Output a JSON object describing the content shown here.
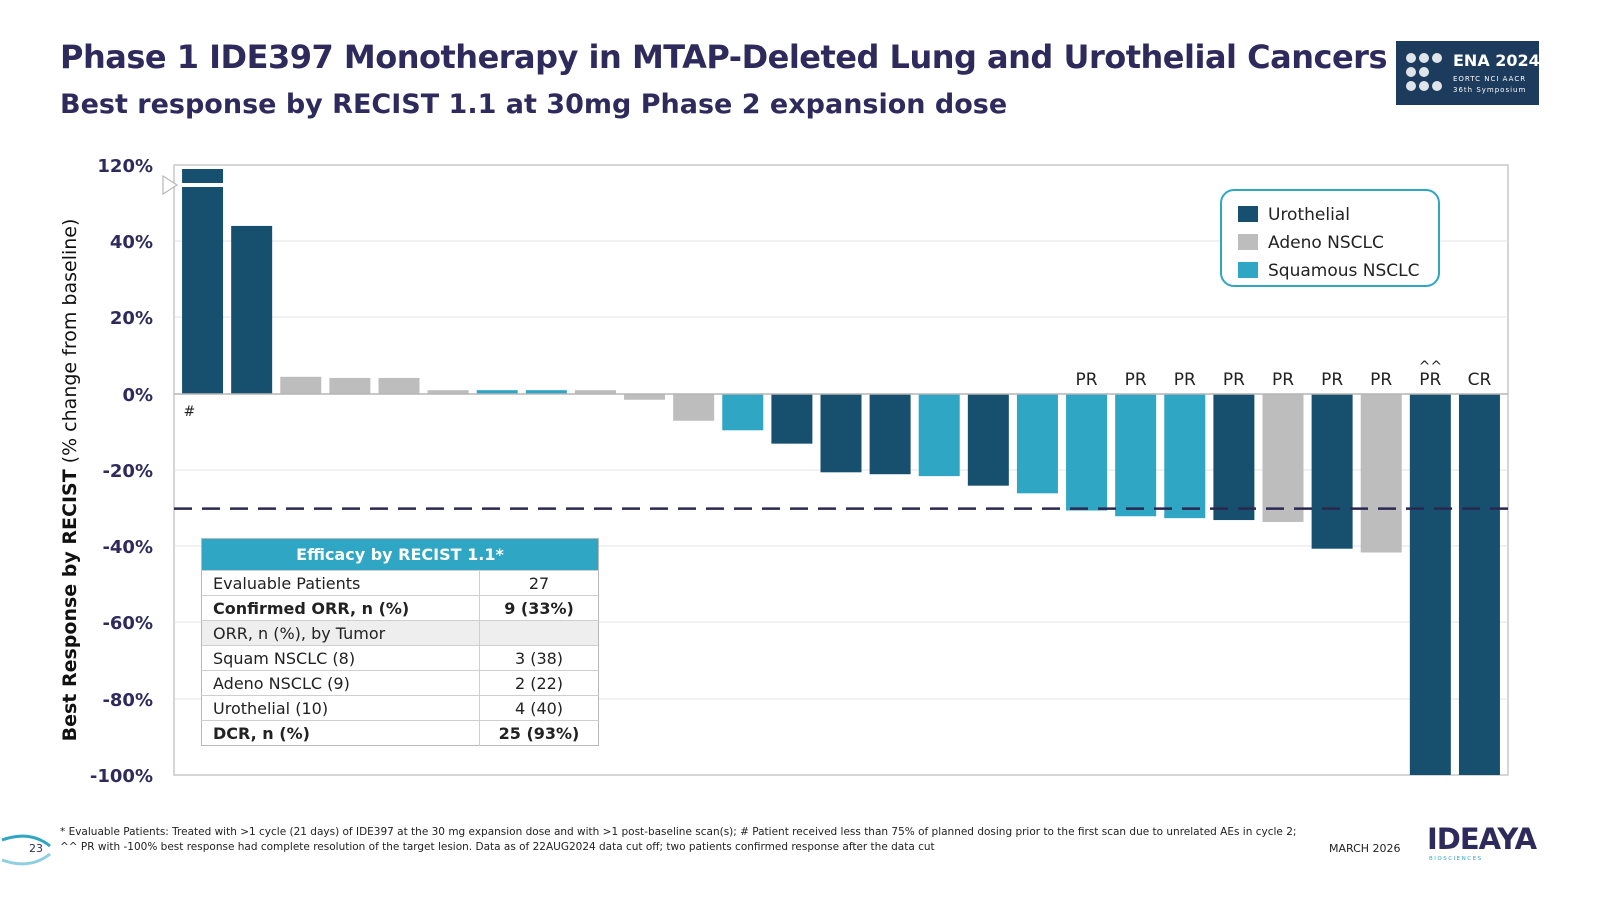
{
  "slide": {
    "title": "Phase 1 IDE397 Monotherapy in MTAP-Deleted Lung and Urothelial Cancers",
    "subtitle": "Best response by RECIST 1.1 at 30mg Phase 2 expansion dose",
    "conference_logo": {
      "main": "ENA 2024",
      "line1": "EORTC  NCI  AACR",
      "line2": "36th Symposium"
    },
    "page_number": "23",
    "date": "MARCH 2026",
    "company": "IDEAYA",
    "company_sub": "BIOSCIENCES",
    "footnotes": [
      "* Evaluable Patients: Treated with >1 cycle (21 days) of IDE397 at the 30 mg expansion dose and with >1 post-baseline scan(s); # Patient received less than 75% of planned dosing prior to the first scan due to unrelated AEs in cycle 2;",
      "^^ PR with -100% best response had complete resolution of the target lesion.  Data as of 22AUG2024 data cut off; two patients confirmed response after the data cut"
    ]
  },
  "colors": {
    "urothelial": "#17506f",
    "adeno": "#bdbdbd",
    "squamous": "#2fa6c3",
    "title": "#2e2a5c"
  },
  "chart_data": {
    "type": "bar",
    "title": "",
    "ylabel_bold": "Best Response by RECIST",
    "ylabel_rest": " (% change from baseline)",
    "y_ticks": [
      "120%",
      "40%",
      "20%",
      "0%",
      "-20%",
      "-40%",
      "-60%",
      "-80%",
      "-100%"
    ],
    "axis_break": true,
    "threshold": -30,
    "series_names": {
      "urothelial": "Urothelial",
      "adeno": "Adeno NSCLC",
      "squamous": "Squamous NSCLC"
    },
    "legend_position": "top-right",
    "bars": [
      {
        "value": 120,
        "group": "urothelial",
        "label": "",
        "note": "#"
      },
      {
        "value": 44,
        "group": "urothelial",
        "label": "",
        "note": ""
      },
      {
        "value": 4.5,
        "group": "adeno",
        "label": "",
        "note": ""
      },
      {
        "value": 4.2,
        "group": "adeno",
        "label": "",
        "note": ""
      },
      {
        "value": 4.2,
        "group": "adeno",
        "label": "",
        "note": ""
      },
      {
        "value": 1,
        "group": "adeno",
        "label": "",
        "note": ""
      },
      {
        "value": 1,
        "group": "squamous",
        "label": "",
        "note": ""
      },
      {
        "value": 1,
        "group": "squamous",
        "label": "",
        "note": ""
      },
      {
        "value": 1,
        "group": "adeno",
        "label": "",
        "note": ""
      },
      {
        "value": -1.5,
        "group": "adeno",
        "label": "",
        "note": ""
      },
      {
        "value": -7,
        "group": "adeno",
        "label": "",
        "note": ""
      },
      {
        "value": -9.5,
        "group": "squamous",
        "label": "",
        "note": ""
      },
      {
        "value": -13,
        "group": "urothelial",
        "label": "",
        "note": ""
      },
      {
        "value": -20.5,
        "group": "urothelial",
        "label": "",
        "note": ""
      },
      {
        "value": -21,
        "group": "urothelial",
        "label": "",
        "note": ""
      },
      {
        "value": -21.5,
        "group": "squamous",
        "label": "",
        "note": ""
      },
      {
        "value": -24,
        "group": "urothelial",
        "label": "",
        "note": ""
      },
      {
        "value": -26,
        "group": "squamous",
        "label": "",
        "note": ""
      },
      {
        "value": -30.5,
        "group": "squamous",
        "label": "PR",
        "note": ""
      },
      {
        "value": -32,
        "group": "squamous",
        "label": "PR",
        "note": ""
      },
      {
        "value": -32.5,
        "group": "squamous",
        "label": "PR",
        "note": ""
      },
      {
        "value": -33,
        "group": "urothelial",
        "label": "PR",
        "note": ""
      },
      {
        "value": -33.5,
        "group": "adeno",
        "label": "PR",
        "note": ""
      },
      {
        "value": -40.5,
        "group": "urothelial",
        "label": "PR",
        "note": ""
      },
      {
        "value": -41.5,
        "group": "adeno",
        "label": "PR",
        "note": ""
      },
      {
        "value": -100,
        "group": "urothelial",
        "label": "PR",
        "note": "^^"
      },
      {
        "value": -100,
        "group": "urothelial",
        "label": "CR",
        "note": ""
      }
    ]
  },
  "efficacy_table": {
    "header": "Efficacy by RECIST 1.1*",
    "rows": [
      {
        "label": "Evaluable Patients",
        "value": "27"
      },
      {
        "label": "Confirmed ORR, n (%)",
        "value": "9 (33%)"
      },
      {
        "label": "ORR, n (%), by Tumor",
        "value": ""
      },
      {
        "label": "Squam NSCLC (8)",
        "value": "3 (38)"
      },
      {
        "label": "Adeno NSCLC (9)",
        "value": "2 (22)"
      },
      {
        "label": "Urothelial (10)",
        "value": "4 (40)"
      },
      {
        "label": "DCR, n (%)",
        "value": "25 (93%)"
      }
    ]
  }
}
